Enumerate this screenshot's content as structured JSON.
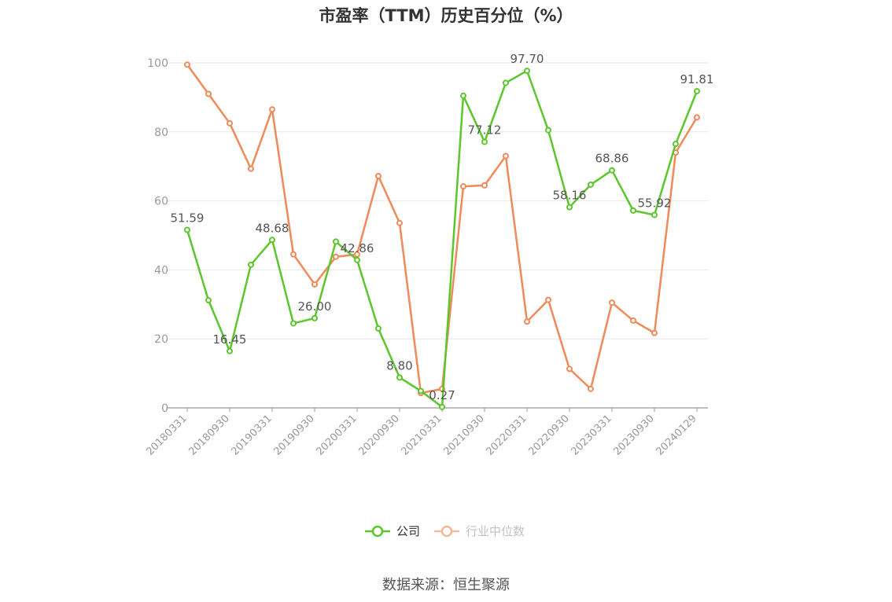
{
  "chart_data": {
    "type": "line",
    "title": "市盈率（TTM）历史百分位（%）",
    "source": "数据来源：恒生聚源",
    "x": [
      "20180331",
      "20180630",
      "20180930",
      "20181231",
      "20190331",
      "20190630",
      "20190930",
      "20191231",
      "20200331",
      "20200630",
      "20200930",
      "20201231",
      "20210331",
      "20210630",
      "20210930",
      "20211231",
      "20220331",
      "20220630",
      "20220930",
      "20221231",
      "20230331",
      "20230630",
      "20230930",
      "20231231",
      "20240129"
    ],
    "x_tick_labels": [
      "20180331",
      "20180930",
      "20190331",
      "20190930",
      "20200331",
      "20200930",
      "20210331",
      "20210930",
      "20220331",
      "20220930",
      "20230331",
      "20230930",
      "20240129"
    ],
    "ylim": [
      0,
      100
    ],
    "y_ticks": [
      0,
      20,
      40,
      60,
      80,
      100
    ],
    "grid": true,
    "legend_position": "bottom-center",
    "series": [
      {
        "name": "公司",
        "color": "#5cc72c",
        "values": [
          51.59,
          31.2,
          16.45,
          41.5,
          48.68,
          24.5,
          26.0,
          48.2,
          42.86,
          23.0,
          8.8,
          4.9,
          0.27,
          90.5,
          77.12,
          94.2,
          97.7,
          80.5,
          58.16,
          64.7,
          68.86,
          57.2,
          55.92,
          76.5,
          91.81
        ],
        "labels": {
          "0": "51.59",
          "2": "16.45",
          "4": "48.68",
          "6": "26.00",
          "8": "42.86",
          "10": "8.80",
          "12": "0.27",
          "14": "77.12",
          "16": "97.70",
          "18": "58.16",
          "20": "68.86",
          "22": "55.92",
          "24": "91.81"
        }
      },
      {
        "name": "行业中位数",
        "color": "#f08a5a",
        "values": [
          99.5,
          91.0,
          82.5,
          69.3,
          86.5,
          44.5,
          35.8,
          43.8,
          44.5,
          67.2,
          53.6,
          4.3,
          5.5,
          64.2,
          64.5,
          73.0,
          25.0,
          31.3,
          11.3,
          5.5,
          30.5,
          25.3,
          21.7,
          74.0,
          84.2
        ]
      }
    ]
  }
}
